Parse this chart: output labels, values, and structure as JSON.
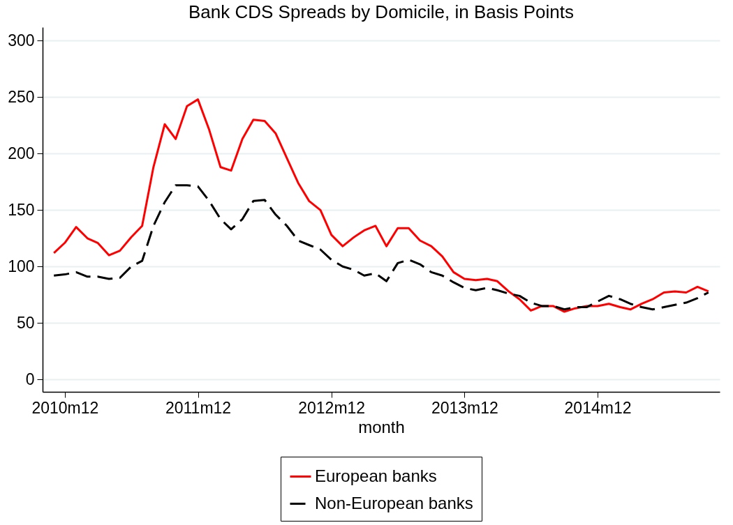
{
  "chart_data": {
    "type": "line",
    "title": "Bank CDS Spreads by Domicile, in Basis Points",
    "xlabel": "month",
    "x": [
      "2010-11",
      "2010-12",
      "2011-01",
      "2011-02",
      "2011-03",
      "2011-04",
      "2011-05",
      "2011-06",
      "2011-07",
      "2011-08",
      "2011-09",
      "2011-10",
      "2011-11",
      "2011-12",
      "2012-01",
      "2012-02",
      "2012-03",
      "2012-04",
      "2012-05",
      "2012-06",
      "2012-07",
      "2012-08",
      "2012-09",
      "2012-10",
      "2012-11",
      "2012-12",
      "2013-01",
      "2013-02",
      "2013-03",
      "2013-04",
      "2013-05",
      "2013-06",
      "2013-07",
      "2013-08",
      "2013-09",
      "2013-10",
      "2013-11",
      "2013-12",
      "2014-01",
      "2014-02",
      "2014-03",
      "2014-04",
      "2014-05",
      "2014-06",
      "2014-07",
      "2014-08",
      "2014-09",
      "2014-10",
      "2014-11",
      "2014-12",
      "2015-01",
      "2015-02",
      "2015-03",
      "2015-04",
      "2015-05",
      "2015-06",
      "2015-07",
      "2015-08",
      "2015-09",
      "2015-10"
    ],
    "series": [
      {
        "name": "European banks",
        "color": "#ff0000",
        "line_style": "solid",
        "values": [
          112,
          121,
          135,
          125,
          121,
          110,
          114,
          126,
          136,
          188,
          226,
          213,
          242,
          248,
          221,
          188,
          185,
          213,
          230,
          229,
          218,
          196,
          174,
          158,
          150,
          128,
          118,
          126,
          132,
          136,
          118,
          134,
          134,
          123,
          118,
          109,
          95,
          89,
          88,
          89,
          87,
          78,
          71,
          61,
          65,
          65,
          60,
          63,
          65,
          65,
          67,
          64,
          62,
          67,
          71,
          77,
          78,
          77,
          82,
          78
        ]
      },
      {
        "name": "Non-European banks",
        "color": "#000000",
        "line_style": "dashed",
        "values": [
          92,
          93,
          95,
          91,
          91,
          89,
          90,
          100,
          105,
          136,
          157,
          172,
          172,
          171,
          158,
          142,
          133,
          142,
          158,
          159,
          146,
          136,
          123,
          119,
          115,
          106,
          100,
          97,
          92,
          94,
          87,
          103,
          106,
          102,
          95,
          92,
          86,
          81,
          79,
          81,
          79,
          76,
          74,
          68,
          65,
          65,
          62,
          64,
          64,
          69,
          74,
          71,
          67,
          64,
          62,
          64,
          66,
          68,
          72,
          77
        ]
      }
    ],
    "xlim": [
      "2010-10",
      "2015-11"
    ],
    "xticks": [
      {
        "value": "2010-12",
        "label": "2010m12"
      },
      {
        "value": "2011-12",
        "label": "2011m12"
      },
      {
        "value": "2012-12",
        "label": "2012m12"
      },
      {
        "value": "2013-12",
        "label": "2013m12"
      },
      {
        "value": "2014-12",
        "label": "2014m12"
      }
    ],
    "ylim": [
      -11,
      312
    ],
    "yticks": [
      0,
      50,
      100,
      150,
      200,
      250,
      300
    ],
    "grid": "y",
    "legend": "bottom"
  }
}
